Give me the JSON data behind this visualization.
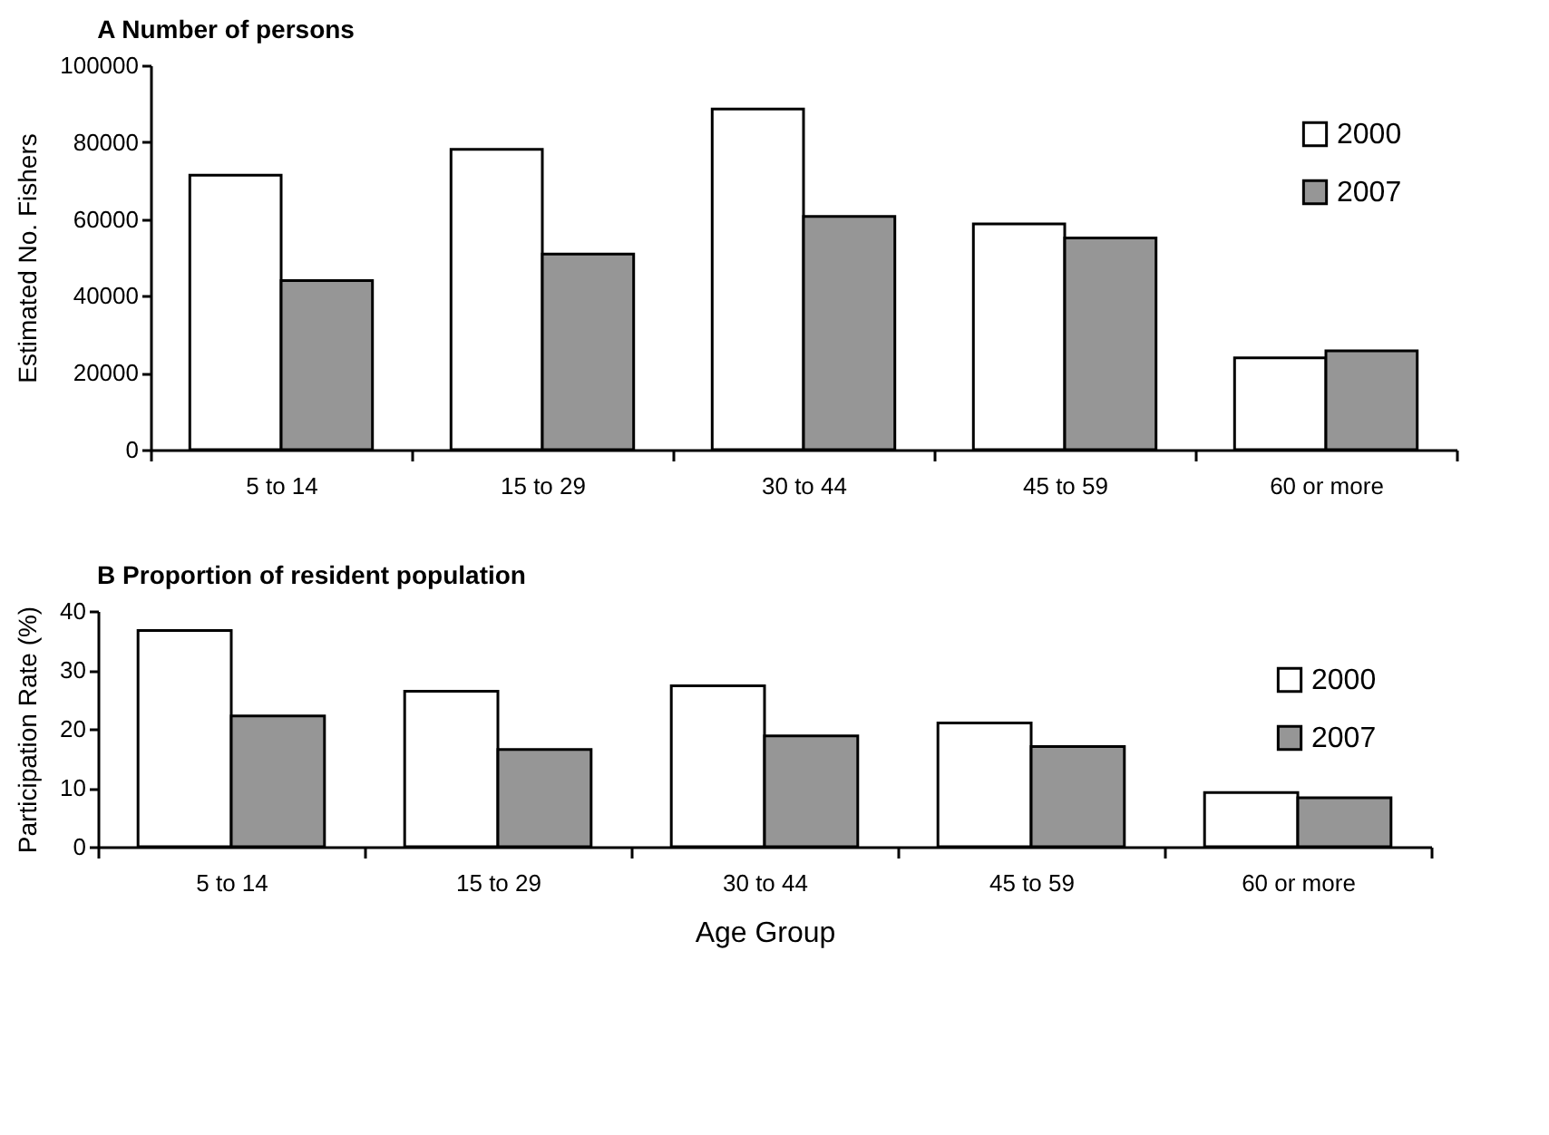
{
  "chart_data": [
    {
      "type": "bar",
      "title": "A  Number of persons",
      "ylabel": "Estimated No. Fishers",
      "categories": [
        "5 to 14",
        "15 to 29",
        "30 to 44",
        "45 to 59",
        "60 or more"
      ],
      "series": [
        {
          "name": "2000",
          "color": "#ffffff",
          "values": [
            71400,
            78100,
            88600,
            58700,
            23900
          ]
        },
        {
          "name": "2007",
          "color": "#969696",
          "values": [
            44000,
            50900,
            60700,
            55100,
            25700
          ]
        }
      ],
      "ylim": [
        0,
        100000
      ],
      "yticks": [
        0,
        20000,
        40000,
        60000,
        80000,
        100000
      ],
      "legend": "top right"
    },
    {
      "type": "bar",
      "title": "B  Proportion of resident population",
      "xlabel": "Age Group",
      "ylabel": "Participation Rate (%)",
      "categories": [
        "5 to 14",
        "15 to 29",
        "30 to 44",
        "45 to 59",
        "60 or more"
      ],
      "series": [
        {
          "name": "2000",
          "color": "#ffffff",
          "values": [
            36.7,
            26.4,
            27.3,
            21.0,
            9.2
          ]
        },
        {
          "name": "2007",
          "color": "#969696",
          "values": [
            22.2,
            16.5,
            18.8,
            17.0,
            8.3
          ]
        }
      ],
      "ylim": [
        0,
        40
      ],
      "yticks": [
        0,
        10,
        20,
        30,
        40
      ],
      "legend": "top right"
    }
  ]
}
